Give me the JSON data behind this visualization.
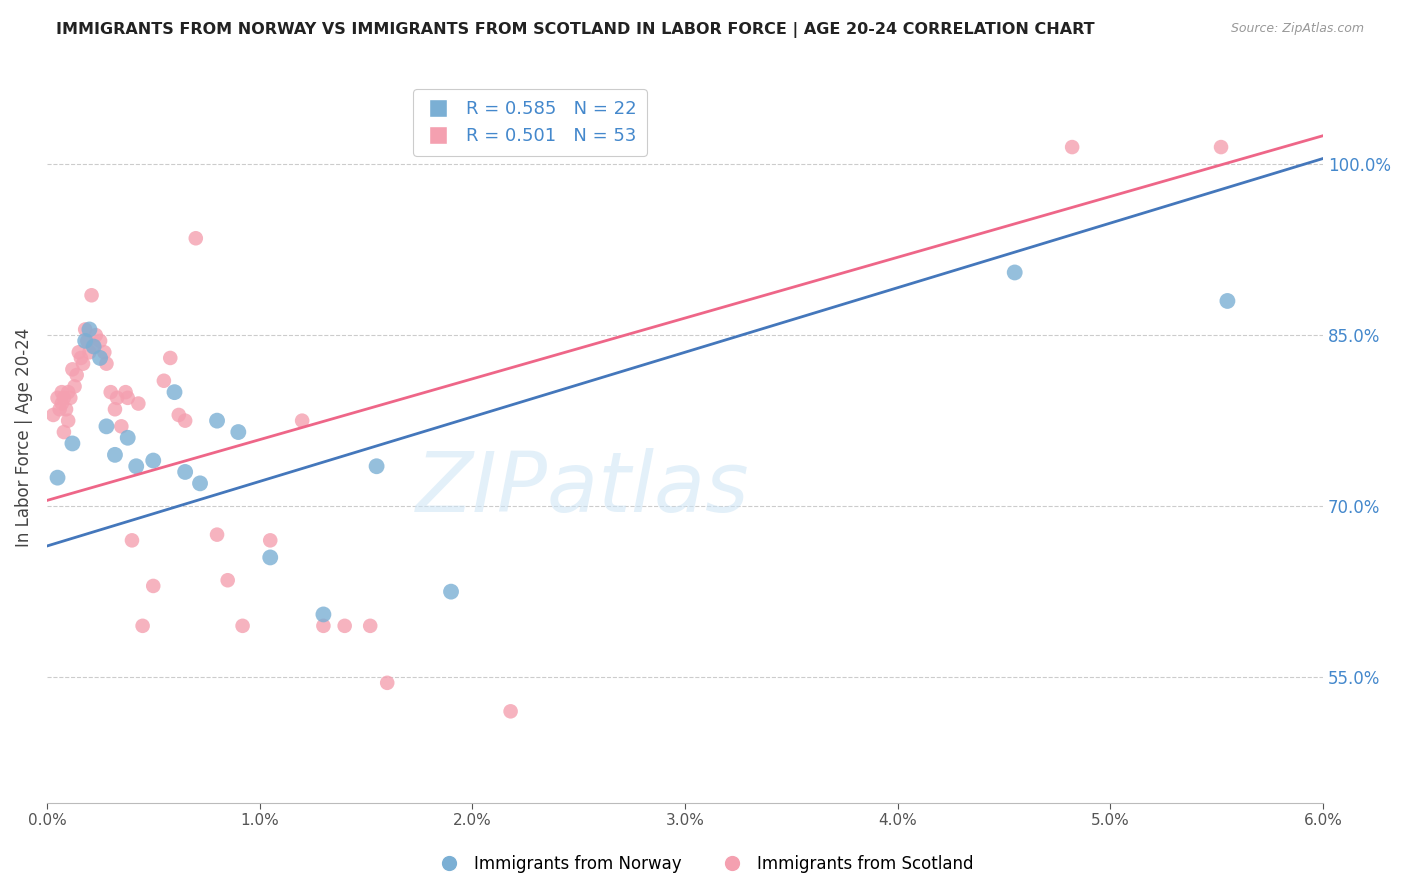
{
  "title": "IMMIGRANTS FROM NORWAY VS IMMIGRANTS FROM SCOTLAND IN LABOR FORCE | AGE 20-24 CORRELATION CHART",
  "source": "Source: ZipAtlas.com",
  "ylabel": "In Labor Force | Age 20-24",
  "right_yticks": [
    55.0,
    70.0,
    85.0,
    100.0
  ],
  "norway_R": 0.585,
  "norway_N": 22,
  "scotland_R": 0.501,
  "scotland_N": 53,
  "norway_color": "#7BAFD4",
  "scotland_color": "#F4A0B0",
  "norway_line_color": "#4477BB",
  "scotland_line_color": "#EE6688",
  "norway_x": [
    0.05,
    0.12,
    0.18,
    0.2,
    0.22,
    0.25,
    0.28,
    0.32,
    0.38,
    0.42,
    0.5,
    0.6,
    0.65,
    0.72,
    0.8,
    0.9,
    1.05,
    1.3,
    1.55,
    1.9,
    4.55,
    5.55
  ],
  "norway_y": [
    72.5,
    75.5,
    84.5,
    85.5,
    84.0,
    83.0,
    77.0,
    74.5,
    76.0,
    73.5,
    74.0,
    80.0,
    73.0,
    72.0,
    77.5,
    76.5,
    65.5,
    60.5,
    73.5,
    62.5,
    90.5,
    88.0
  ],
  "scotland_x": [
    0.03,
    0.05,
    0.06,
    0.07,
    0.07,
    0.08,
    0.08,
    0.09,
    0.1,
    0.1,
    0.11,
    0.12,
    0.13,
    0.14,
    0.15,
    0.16,
    0.17,
    0.18,
    0.19,
    0.2,
    0.21,
    0.22,
    0.23,
    0.25,
    0.27,
    0.28,
    0.3,
    0.32,
    0.33,
    0.35,
    0.37,
    0.38,
    0.4,
    0.43,
    0.45,
    0.5,
    0.55,
    0.58,
    0.62,
    0.65,
    0.7,
    0.8,
    0.85,
    0.92,
    1.05,
    1.2,
    1.3,
    1.4,
    1.52,
    1.6,
    2.18,
    4.82,
    5.52
  ],
  "scotland_y": [
    78.0,
    79.5,
    78.5,
    80.0,
    79.0,
    79.5,
    76.5,
    78.5,
    80.0,
    77.5,
    79.5,
    82.0,
    80.5,
    81.5,
    83.5,
    83.0,
    82.5,
    85.5,
    84.5,
    83.5,
    88.5,
    84.0,
    85.0,
    84.5,
    83.5,
    82.5,
    80.0,
    78.5,
    79.5,
    77.0,
    80.0,
    79.5,
    67.0,
    79.0,
    59.5,
    63.0,
    81.0,
    83.0,
    78.0,
    77.5,
    93.5,
    67.5,
    63.5,
    59.5,
    67.0,
    77.5,
    59.5,
    59.5,
    59.5,
    54.5,
    52.0,
    101.5,
    101.5
  ],
  "xmin": 0.0,
  "xmax": 6.0,
  "ymin": 44,
  "ymax": 108,
  "norway_line_x0": 0.0,
  "norway_line_y0": 66.5,
  "norway_line_x1": 6.0,
  "norway_line_y1": 100.5,
  "scotland_line_x0": 0.0,
  "scotland_line_y0": 70.5,
  "scotland_line_x1": 6.0,
  "scotland_line_y1": 102.5,
  "watermark_text": "ZIPatlas",
  "background_color": "#FFFFFF",
  "grid_color": "#CCCCCC",
  "xticks": [
    0.0,
    1.0,
    2.0,
    3.0,
    4.0,
    5.0,
    6.0
  ]
}
